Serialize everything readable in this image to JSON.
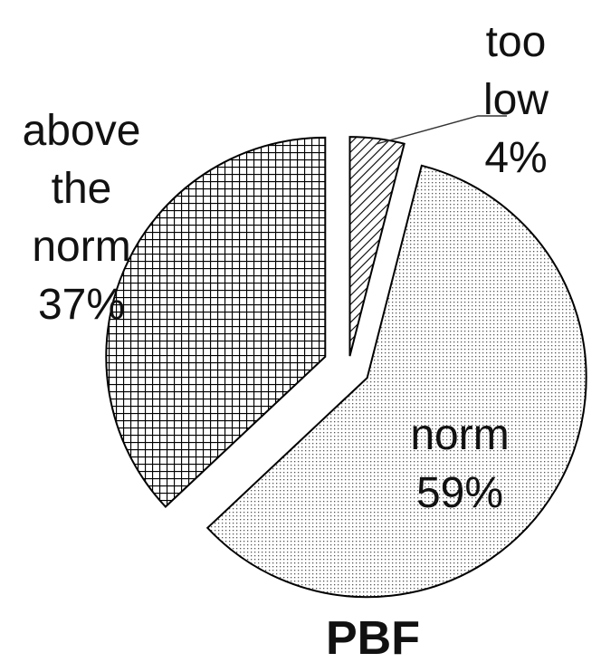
{
  "chart_data": {
    "type": "pie",
    "title": "PBF",
    "categories": [
      "too low",
      "norm",
      "above the norm"
    ],
    "values": [
      4,
      59,
      37
    ],
    "labels": [
      {
        "lines": [
          "too",
          "low"
        ],
        "pct": "4%"
      },
      {
        "lines": [
          "norm"
        ],
        "pct": "59%"
      },
      {
        "lines": [
          "above",
          "the",
          "norm"
        ],
        "pct": "37%"
      }
    ],
    "fills": [
      "diagonal-hatch",
      "dots",
      "grid-crosshatch"
    ],
    "legend": "none"
  }
}
